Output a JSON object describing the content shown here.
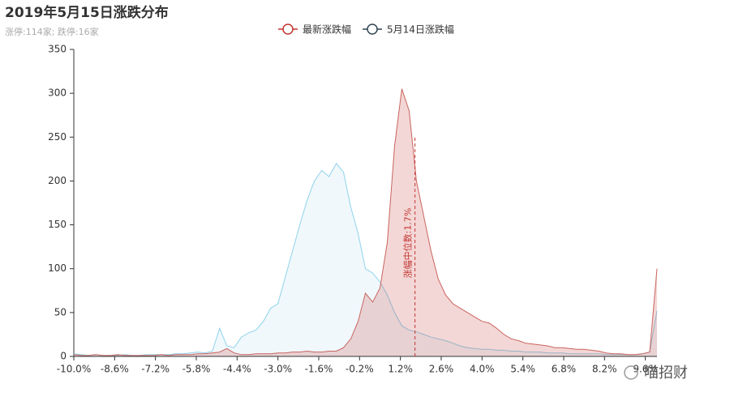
{
  "chart_data": {
    "type": "area",
    "title": "2019年5月15日涨跌分布",
    "subtitle": "涨停:114家; 跌停:16家",
    "watermark": "喵招财",
    "x": [
      -10,
      -9.75,
      -9.5,
      -9.25,
      -9,
      -8.75,
      -8.5,
      -8.25,
      -8,
      -7.75,
      -7.5,
      -7.25,
      -7,
      -6.75,
      -6.5,
      -6.25,
      -6,
      -5.75,
      -5.5,
      -5.25,
      -5,
      -4.75,
      -4.5,
      -4.25,
      -4,
      -3.75,
      -3.5,
      -3.25,
      -3,
      -2.75,
      -2.5,
      -2.25,
      -2,
      -1.75,
      -1.5,
      -1.25,
      -1,
      -0.75,
      -0.5,
      -0.25,
      0,
      0.25,
      0.5,
      0.75,
      1,
      1.25,
      1.5,
      1.75,
      2,
      2.25,
      2.5,
      2.75,
      3,
      3.25,
      3.5,
      3.75,
      4,
      4.25,
      4.5,
      4.75,
      5,
      5.25,
      5.5,
      5.75,
      6,
      6.25,
      6.5,
      6.75,
      7,
      7.25,
      7.5,
      7.75,
      8,
      8.25,
      8.5,
      8.75,
      9,
      9.25,
      9.5,
      9.75,
      10
    ],
    "series": [
      {
        "name": "5月14日涨跌幅",
        "color": "#8fd3ea",
        "fill": "rgba(170,215,240,0.18)",
        "legend_color": "#2f4554",
        "values": [
          3,
          2,
          1,
          2,
          1,
          1,
          1,
          2,
          1,
          1,
          2,
          2,
          2,
          2,
          3,
          3,
          4,
          5,
          4,
          6,
          32,
          12,
          10,
          22,
          27,
          30,
          40,
          55,
          60,
          90,
          120,
          150,
          178,
          200,
          212,
          205,
          220,
          210,
          170,
          140,
          100,
          95,
          85,
          70,
          50,
          35,
          30,
          28,
          25,
          22,
          20,
          18,
          15,
          12,
          10,
          9,
          8,
          8,
          7,
          7,
          6,
          6,
          5,
          5,
          5,
          4,
          4,
          4,
          3,
          3,
          3,
          3,
          3,
          2,
          2,
          2,
          2,
          2,
          3,
          5,
          52
        ]
      },
      {
        "name": "最新涨跌幅",
        "color": "#c9645f",
        "fill": "rgba(194,53,49,0.2)",
        "legend_color": "#c23531",
        "values": [
          2,
          1,
          1,
          2,
          1,
          1,
          2,
          1,
          1,
          1,
          1,
          1,
          2,
          1,
          2,
          2,
          2,
          3,
          3,
          4,
          5,
          9,
          4,
          2,
          2,
          3,
          3,
          3,
          4,
          4,
          5,
          5,
          6,
          5,
          5,
          6,
          6,
          10,
          20,
          40,
          72,
          62,
          78,
          130,
          240,
          305,
          280,
          200,
          160,
          120,
          88,
          70,
          60,
          55,
          50,
          45,
          40,
          38,
          32,
          25,
          20,
          18,
          15,
          14,
          13,
          12,
          10,
          10,
          9,
          8,
          8,
          7,
          6,
          4,
          3,
          3,
          2,
          2,
          3,
          5,
          100
        ]
      }
    ],
    "legend_order": [
      1,
      0
    ],
    "median": 1.7,
    "median_label": "涨幅中位数:1.7%",
    "xlim": [
      -10,
      10
    ],
    "xticks": [
      {
        "value": -10,
        "label": "-10.0%"
      },
      {
        "value": -8.6,
        "label": "-8.6%"
      },
      {
        "value": -7.2,
        "label": "-7.2%"
      },
      {
        "value": -5.8,
        "label": "-5.8%"
      },
      {
        "value": -4.4,
        "label": "-4.4%"
      },
      {
        "value": -3,
        "label": "-3.0%"
      },
      {
        "value": -1.6,
        "label": "-1.6%"
      },
      {
        "value": -0.2,
        "label": "-0.2%"
      },
      {
        "value": 1.2,
        "label": "1.2%"
      },
      {
        "value": 2.6,
        "label": "2.6%"
      },
      {
        "value": 4,
        "label": "4.0%"
      },
      {
        "value": 5.4,
        "label": "5.4%"
      },
      {
        "value": 6.8,
        "label": "6.8%"
      },
      {
        "value": 8.2,
        "label": "8.2%"
      },
      {
        "value": 9.6,
        "label": "9.6%"
      }
    ],
    "ylim": [
      0,
      350
    ],
    "yticks": [
      0,
      50,
      100,
      150,
      200,
      250,
      300,
      350
    ],
    "grid": false
  }
}
